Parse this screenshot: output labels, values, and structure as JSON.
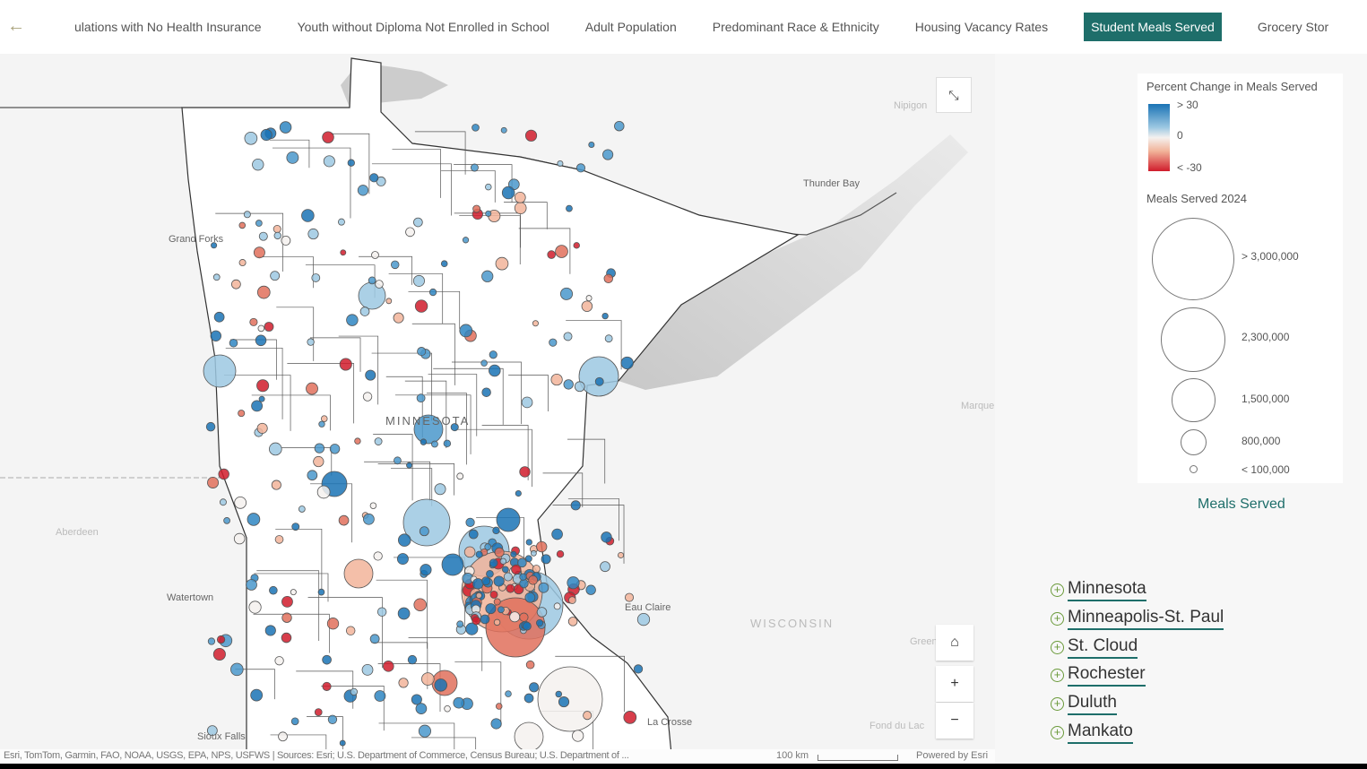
{
  "nav": {
    "back_icon": "arrow-left-icon",
    "tabs": [
      {
        "label": "ulations with No Health Insurance",
        "active": false
      },
      {
        "label": "Youth without Diploma Not Enrolled in School",
        "active": false
      },
      {
        "label": "Adult Population",
        "active": false
      },
      {
        "label": "Predominant Race & Ethnicity",
        "active": false
      },
      {
        "label": "Housing Vacancy Rates",
        "active": false
      },
      {
        "label": "Student Meals Served",
        "active": true
      },
      {
        "label": "Grocery Stor",
        "active": false
      }
    ]
  },
  "map": {
    "labels": {
      "grand_forks": "Grand Forks",
      "minnesota": "MINNESOTA",
      "thunder_bay": "Thunder Bay",
      "nipigon": "Nipigon",
      "aberdeen": "Aberdeen",
      "watertown": "Watertown",
      "eau_claire": "Eau Claire",
      "wisconsin": "WISCONSIN",
      "la_crosse": "La Crosse",
      "sioux_falls": "Sioux Falls",
      "marquette": "Marque",
      "green_bay": "Green",
      "fond_du_lac": "Fond du Lac"
    },
    "attribution": "Esri, TomTom, Garmin, FAO, NOAA, USGS, EPA, NPS, USFWS | Sources: Esri; U.S. Department of Commerce, Census Bureau; U.S. Department of ...",
    "scale": "100 km",
    "powered_by": "Powered by Esri",
    "colors": {
      "increase": "#1a73b5",
      "neutral": "#f4f1ef",
      "decrease": "#d01c2c"
    }
  },
  "legend": {
    "color_title": "Percent Change in Meals Served",
    "color_stops": [
      "> 30",
      "0",
      "< -30"
    ],
    "size_title": "Meals Served 2024",
    "size_stops": [
      "> 3,000,000",
      "2,300,000",
      "1,500,000",
      "800,000",
      "< 100,000"
    ]
  },
  "panel": {
    "meals_link": "Meals Served",
    "regions": [
      "Minnesota",
      "Minneapolis-St. Paul",
      "St. Cloud",
      "Rochester",
      "Duluth",
      "Mankato"
    ]
  }
}
